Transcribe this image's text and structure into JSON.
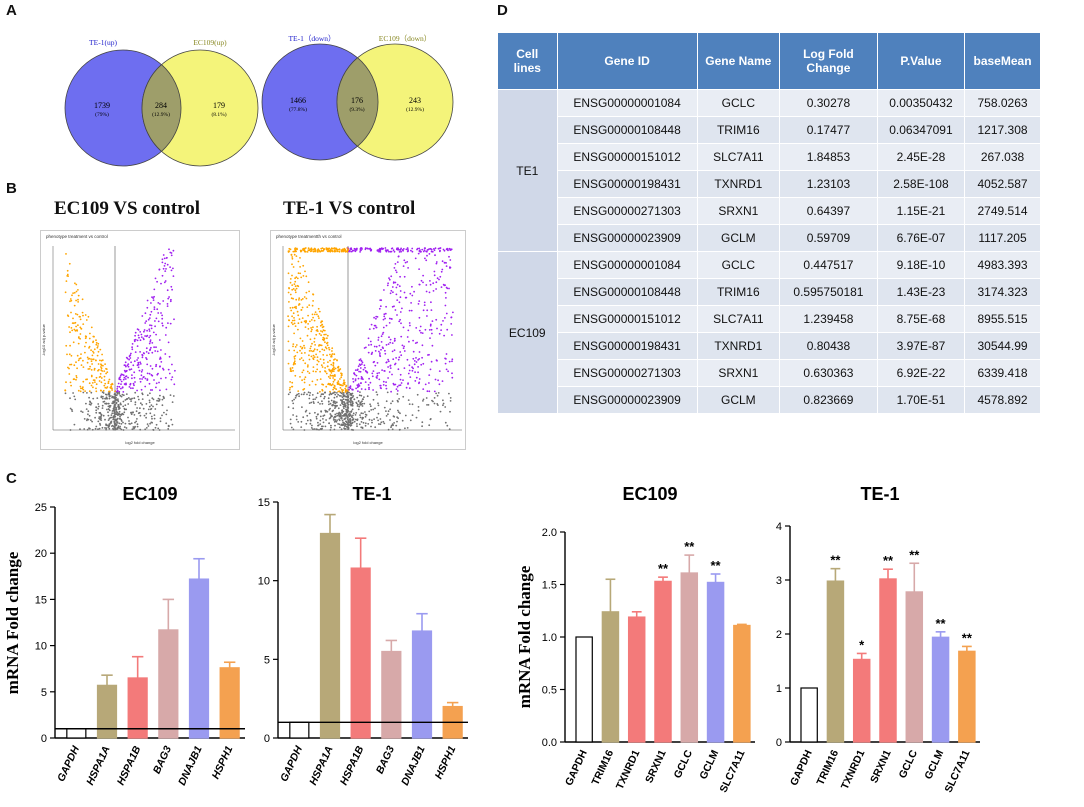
{
  "panels": {
    "a": "A",
    "b": "B",
    "c": "C",
    "d": "D"
  },
  "colors": {
    "venn_blue": "#6e6ef0",
    "venn_yellow": "#f4f47a",
    "venn_overlap": "#9e9e6a",
    "up_purple": "#a020f0",
    "down_orange": "#ffa500",
    "ns_gray": "#707070",
    "table_header": "#4f81bd"
  },
  "venn": [
    {
      "left_label": "TE-1(up)",
      "right_label": "EC109(up)",
      "left_count": "1739",
      "left_pct": "(79%)",
      "mid_count": "284",
      "mid_pct": "(12.9%)",
      "right_count": "179",
      "right_pct": "(8.1%)"
    },
    {
      "left_label": "TE-1（down）",
      "right_label": "EC109（down）",
      "left_count": "1466",
      "left_pct": "(77.8%)",
      "mid_count": "176",
      "mid_pct": "(9.3%)",
      "right_count": "243",
      "right_pct": "(12.9%)"
    }
  ],
  "volcano": [
    {
      "title": "EC109 VS  control",
      "subtitle": "phenotype treatment vs control",
      "xlabel": "log2 fold change",
      "ylabel": "-log10 adj p-value"
    },
    {
      "title": "TE-1  VS  control",
      "subtitle": "phenotype treatmentth vs control",
      "xlabel": "log2 fold change",
      "ylabel": "-log10 adj p-value"
    }
  ],
  "table": {
    "headers": [
      "Cell lines",
      "Gene ID",
      "Gene Name",
      "Log Fold Change",
      "P.Value",
      "baseMean"
    ],
    "groups": [
      {
        "cell_line": "TE1",
        "rows": [
          [
            "ENSG00000001084",
            "GCLC",
            "0.30278",
            "0.00350432",
            "758.0263"
          ],
          [
            "ENSG00000108448",
            "TRIM16",
            "0.17477",
            "0.06347091",
            "1217.308"
          ],
          [
            "ENSG00000151012",
            "SLC7A11",
            "1.84853",
            "2.45E-28",
            "267.038"
          ],
          [
            "ENSG00000198431",
            "TXNRD1",
            "1.23103",
            "2.58E-108",
            "4052.587"
          ],
          [
            "ENSG00000271303",
            "SRXN1",
            "0.64397",
            "1.15E-21",
            "2749.514"
          ],
          [
            "ENSG00000023909",
            "GCLM",
            "0.59709",
            "6.76E-07",
            "1117.205"
          ]
        ]
      },
      {
        "cell_line": "EC109",
        "rows": [
          [
            "ENSG00000001084",
            "GCLC",
            "0.447517",
            "9.18E-10",
            "4983.393"
          ],
          [
            "ENSG00000108448",
            "TRIM16",
            "0.595750181",
            "1.43E-23",
            "3174.323"
          ],
          [
            "ENSG00000151012",
            "SLC7A11",
            "1.239458",
            "8.75E-68",
            "8955.515"
          ],
          [
            "ENSG00000198431",
            "TXNRD1",
            "0.80438",
            "3.97E-87",
            "30544.99"
          ],
          [
            "ENSG00000271303",
            "SRXN1",
            "0.630363",
            "6.92E-22",
            "6339.418"
          ],
          [
            "ENSG00000023909",
            "GCLM",
            "0.823669",
            "1.70E-51",
            "4578.892"
          ]
        ]
      }
    ]
  },
  "chart_data": [
    {
      "type": "bar",
      "title": "EC109",
      "ylabel": "mRNA Fold change",
      "ylim": [
        0,
        25
      ],
      "yticks": [
        0,
        5,
        10,
        15,
        20,
        25
      ],
      "reference_line": 1,
      "categories": [
        "GAPDH",
        "HSPA1A",
        "HSPA1B",
        "BAG3",
        "DNAJB1",
        "HSPH1"
      ],
      "values": [
        1,
        5.7,
        6.5,
        11.7,
        17.2,
        7.6
      ],
      "errors": [
        0,
        1.1,
        2.3,
        3.3,
        2.2,
        0.6
      ],
      "colors": [
        "#ffffff",
        "#b7a878",
        "#f37a7a",
        "#d7a9a9",
        "#9a9af0",
        "#f4a150"
      ],
      "significance": [
        "",
        "",
        "",
        "",
        "",
        ""
      ]
    },
    {
      "type": "bar",
      "title": "TE-1",
      "ylabel": "",
      "ylim": [
        0,
        15
      ],
      "yticks": [
        0,
        5,
        10,
        15
      ],
      "reference_line": 1,
      "categories": [
        "GAPDH",
        "HSPA1A",
        "HSPA1B",
        "BAG3",
        "DNAJB1",
        "HSPH1"
      ],
      "values": [
        1,
        13,
        10.8,
        5.5,
        6.8,
        2
      ],
      "errors": [
        0,
        1.2,
        1.9,
        0.7,
        1.1,
        0.25
      ],
      "colors": [
        "#ffffff",
        "#b7a878",
        "#f37a7a",
        "#d7a9a9",
        "#9a9af0",
        "#f4a150"
      ],
      "significance": [
        "",
        "",
        "",
        "",
        "",
        ""
      ]
    },
    {
      "type": "bar",
      "title": "EC109",
      "ylabel": "mRNA Fold change",
      "ylim": [
        0,
        2.0
      ],
      "yticks": [
        0.0,
        0.5,
        1.0,
        1.5,
        2.0
      ],
      "reference_line": null,
      "categories": [
        "GAPDH",
        "TRIM16",
        "TXNRD1",
        "SRXN1",
        "GCLC",
        "GCLM",
        "SLC7A11"
      ],
      "values": [
        1.0,
        1.24,
        1.19,
        1.53,
        1.61,
        1.52,
        1.11
      ],
      "errors": [
        0,
        0.31,
        0.05,
        0.04,
        0.17,
        0.08,
        0.01
      ],
      "colors": [
        "#ffffff",
        "#b7a878",
        "#f37a7a",
        "#f37a7a",
        "#d7a9a9",
        "#9a9af0",
        "#f4a150"
      ],
      "significance": [
        "",
        "",
        "",
        "**",
        "**",
        "**",
        ""
      ]
    },
    {
      "type": "bar",
      "title": "TE-1",
      "ylabel": "",
      "ylim": [
        0,
        4
      ],
      "yticks": [
        0,
        1,
        2,
        3,
        4
      ],
      "reference_line": null,
      "categories": [
        "GAPDH",
        "TRIM16",
        "TXNRD1",
        "SRXN1",
        "GCLC",
        "GCLM",
        "SLC7A11"
      ],
      "values": [
        1.0,
        2.98,
        1.53,
        3.02,
        2.78,
        1.94,
        1.68
      ],
      "errors": [
        0,
        0.23,
        0.11,
        0.18,
        0.53,
        0.1,
        0.09
      ],
      "colors": [
        "#ffffff",
        "#b7a878",
        "#f37a7a",
        "#f37a7a",
        "#d7a9a9",
        "#9a9af0",
        "#f4a150"
      ],
      "significance": [
        "",
        "**",
        "*",
        "**",
        "**",
        "**",
        "**"
      ]
    }
  ]
}
